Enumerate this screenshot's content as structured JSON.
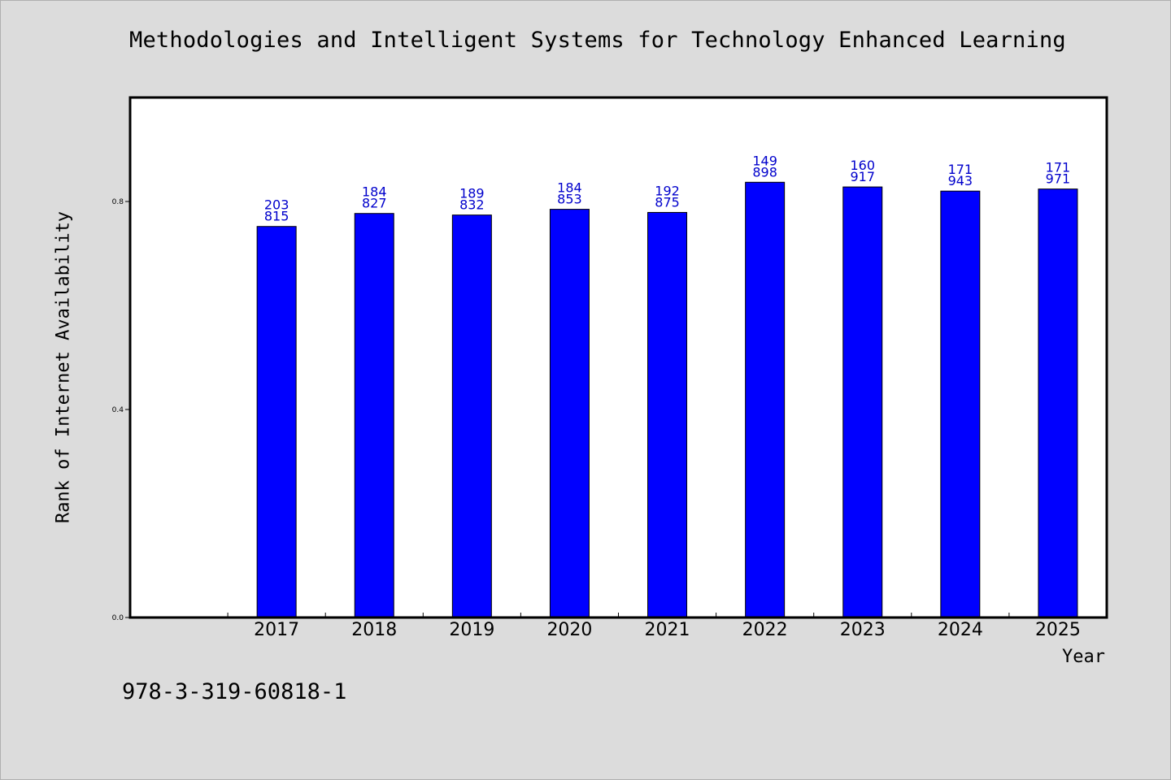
{
  "chart_data": {
    "type": "bar",
    "title": "Methodologies and Intelligent Systems for Technology Enhanced Learning",
    "xlabel": "Year",
    "ylabel": "Rank of Internet Availability",
    "categories": [
      "2017",
      "2018",
      "2019",
      "2020",
      "2021",
      "2022",
      "2023",
      "2024",
      "2025"
    ],
    "values": [
      0.752,
      0.777,
      0.774,
      0.785,
      0.779,
      0.837,
      0.828,
      0.82,
      0.824
    ],
    "data_labels": [
      [
        "203",
        "815"
      ],
      [
        "184",
        "827"
      ],
      [
        "189",
        "832"
      ],
      [
        "184",
        "853"
      ],
      [
        "192",
        "875"
      ],
      [
        "149",
        "898"
      ],
      [
        "160",
        "917"
      ],
      [
        "171",
        "943"
      ],
      [
        "171",
        "971"
      ]
    ],
    "yticks": [
      "0.0",
      "0.4",
      "0.8"
    ],
    "ylim": [
      0,
      1.0
    ],
    "grid": false,
    "legend": "none",
    "colors": {
      "bar": "#0000ff",
      "data_label": "#0000cc",
      "plot_bg": "#ffffff",
      "page_bg": "#dcdcdc"
    }
  },
  "footer": {
    "isbn": "978-3-319-60818-1"
  }
}
